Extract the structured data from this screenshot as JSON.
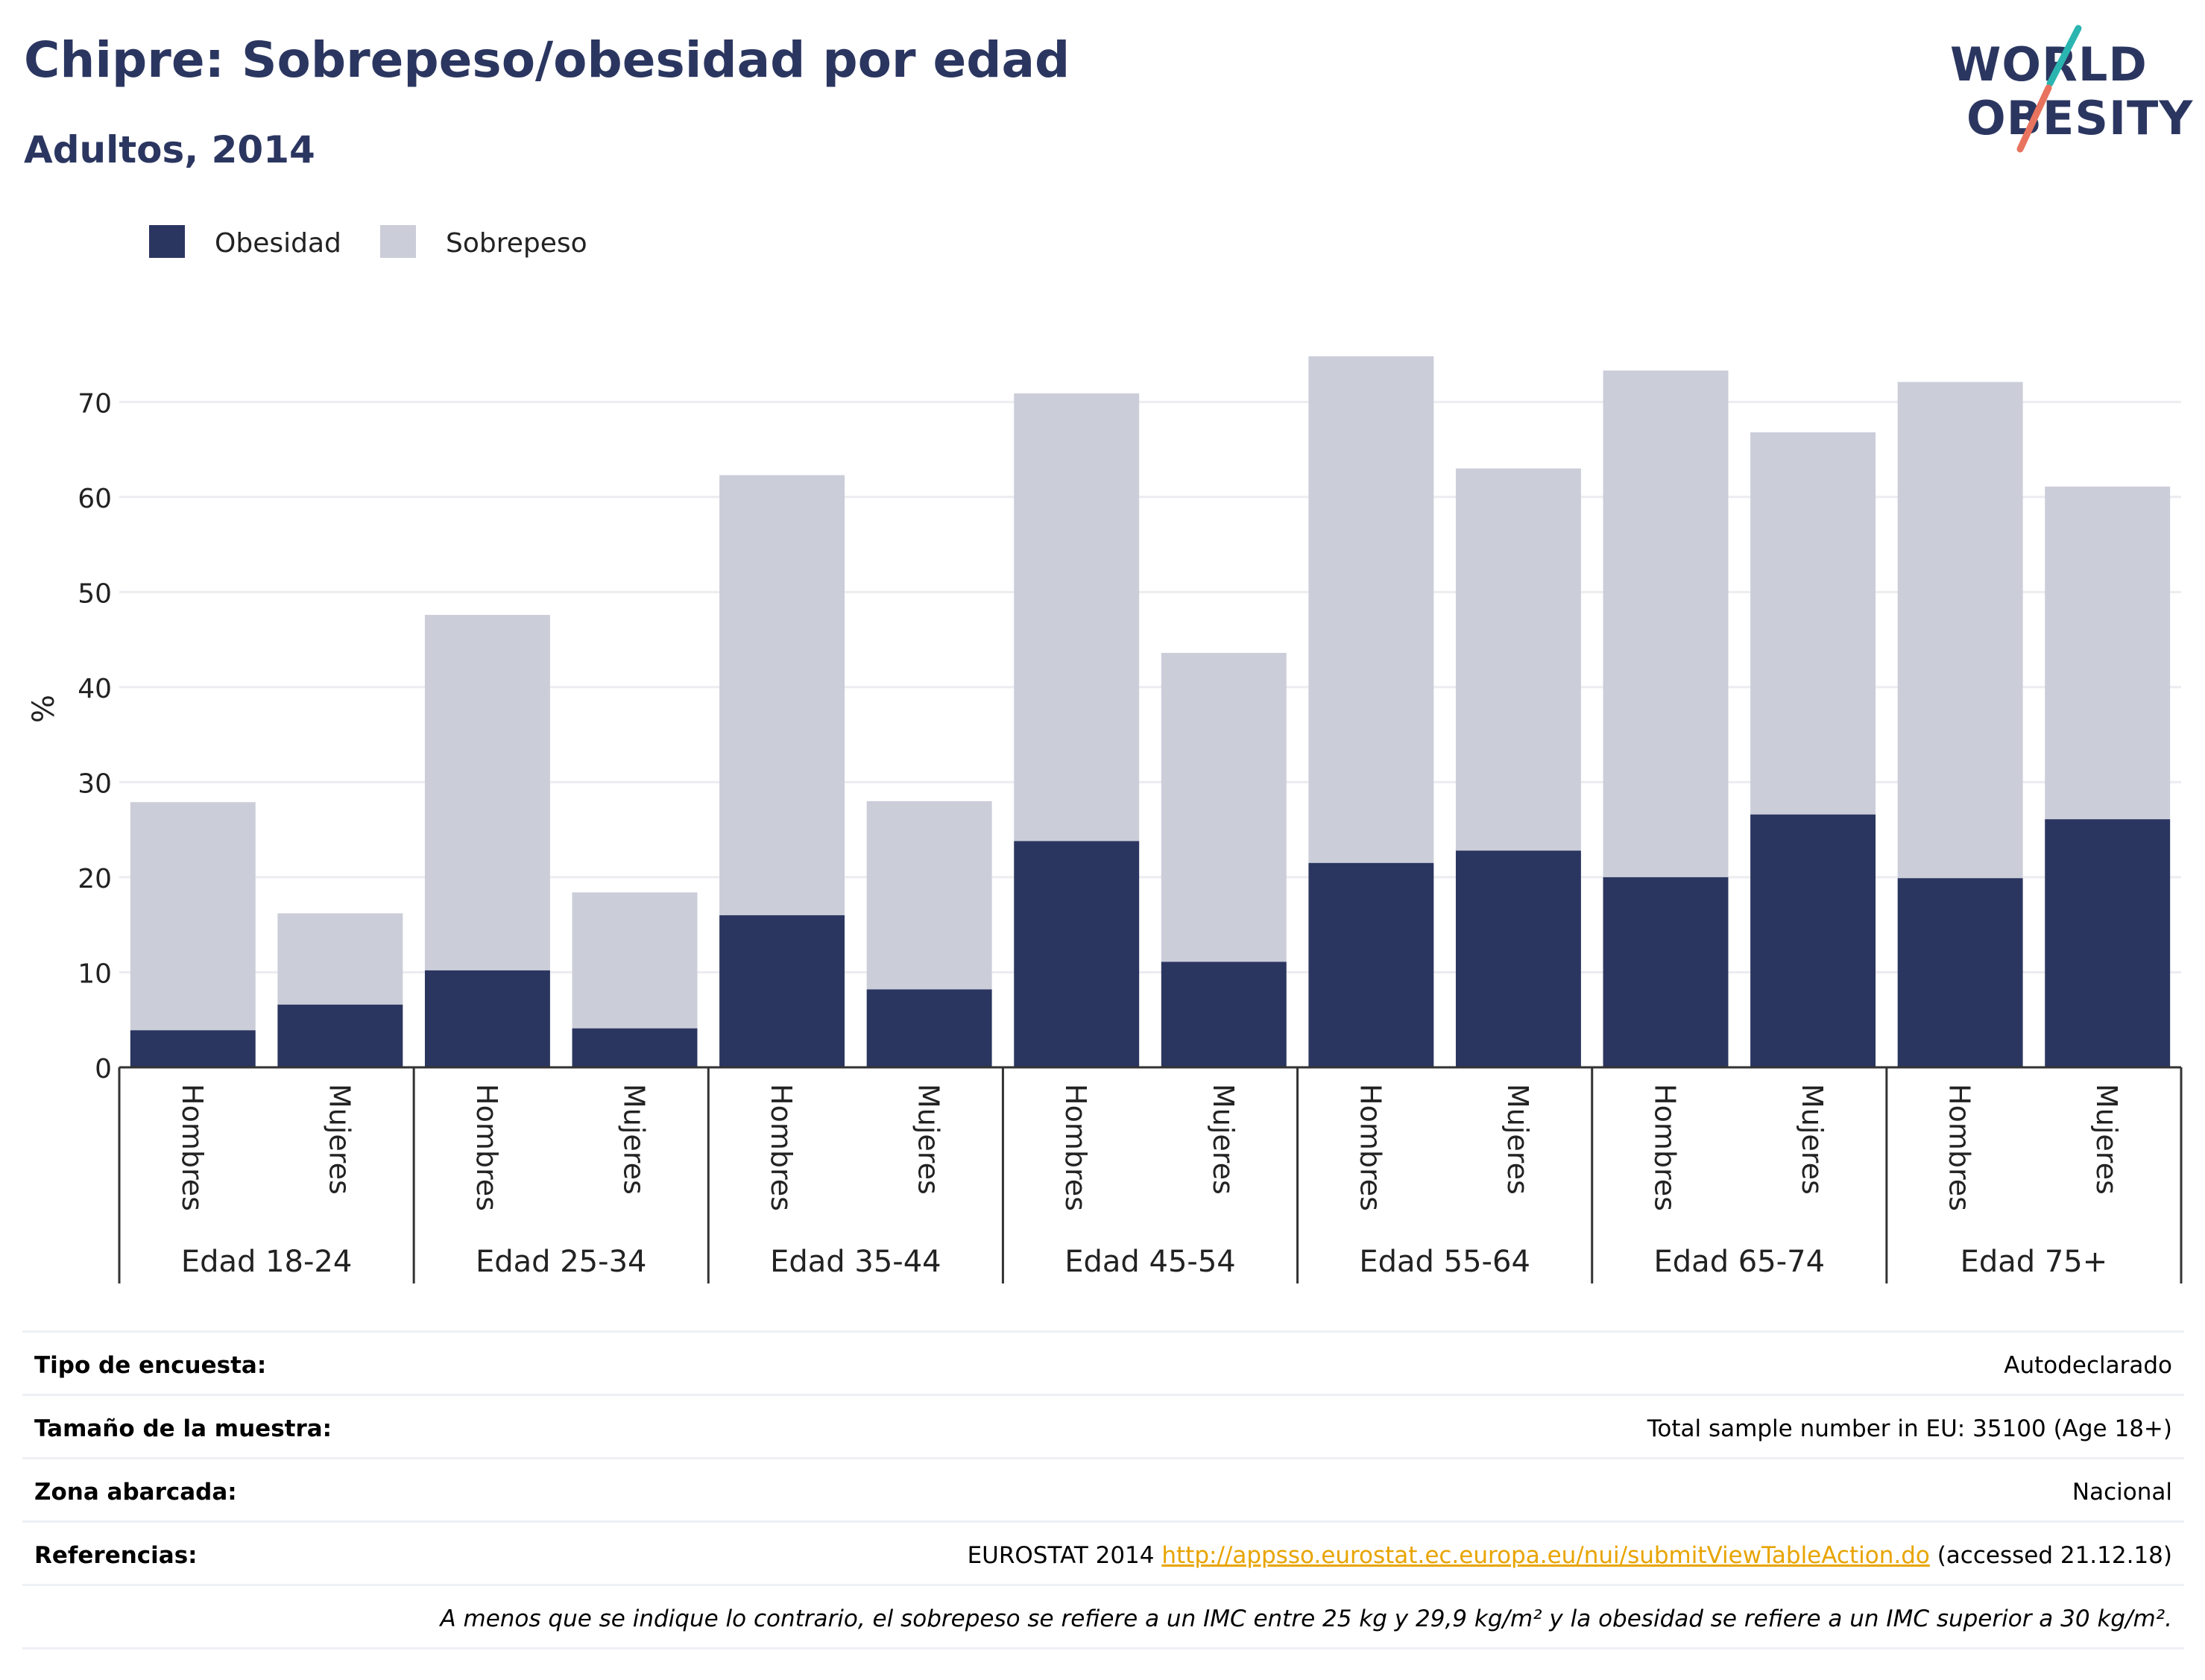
{
  "header": {
    "title": "Chipre: Sobrepeso/obesidad por edad",
    "subtitle": "Adultos, 2014"
  },
  "logo": {
    "line1": "WORLD",
    "line2": "OBESITY"
  },
  "colors": {
    "obesity": "#2b3660",
    "overweight": "#cbcdd9",
    "title": "#2b3660",
    "logo_slash_teal": "#2bb5b0",
    "logo_slash_coral": "#e8735e",
    "link": "#e8a400"
  },
  "chart_data": {
    "type": "bar",
    "stacked": true,
    "ylabel": "%",
    "ylim": [
      0,
      77
    ],
    "yticks": [
      0,
      10,
      20,
      30,
      40,
      50,
      60,
      70
    ],
    "grid": true,
    "legend_position": "top-left",
    "groups": [
      "Edad 18-24",
      "Edad 25-34",
      "Edad 35-44",
      "Edad 45-54",
      "Edad 55-64",
      "Edad 65-74",
      "Edad 75+"
    ],
    "categories": [
      "Hombres",
      "Mujeres",
      "Hombres",
      "Mujeres",
      "Hombres",
      "Mujeres",
      "Hombres",
      "Mujeres",
      "Hombres",
      "Mujeres",
      "Hombres",
      "Mujeres",
      "Hombres",
      "Mujeres"
    ],
    "series": [
      {
        "name": "Obesidad",
        "values": [
          3.9,
          6.6,
          10.2,
          4.1,
          16.0,
          8.2,
          23.8,
          11.1,
          21.5,
          22.8,
          20.0,
          26.6,
          19.9,
          26.1
        ]
      },
      {
        "name": "Sobrepeso",
        "values": [
          24.0,
          9.6,
          37.4,
          14.3,
          46.3,
          19.8,
          47.1,
          32.5,
          53.3,
          40.2,
          53.3,
          40.2,
          52.2,
          35.0
        ]
      }
    ]
  },
  "info": {
    "survey_type": {
      "label": "Tipo de encuesta:",
      "value": "Autodeclarado"
    },
    "sample_size": {
      "label": "Tamaño de la muestra:",
      "value": "Total sample number in EU: 35100 (Age 18+)"
    },
    "area": {
      "label": "Zona abarcada:",
      "value": "Nacional"
    },
    "references": {
      "label": "Referencias:",
      "prefix": "EUROSTAT 2014 ",
      "link": "http://appsso.eurostat.ec.europa.eu/nui/submitViewTableAction.do",
      "suffix": " (accessed 21.12.18)"
    },
    "note": "A menos que se indique lo contrario, el sobrepeso se refiere a un IMC entre 25 kg y 29,9 kg/m² y la obesidad se refiere a un IMC superior a 30 kg/m²."
  }
}
